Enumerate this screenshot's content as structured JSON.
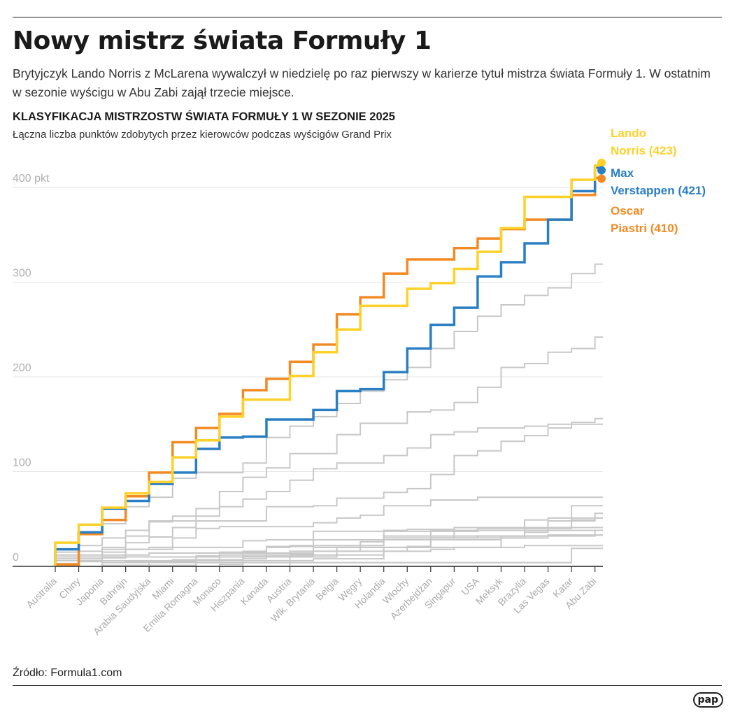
{
  "header": {
    "title": "Nowy mistrz świata Formuły 1",
    "lead": "Brytyjczyk Lando Norris z McLarena wywalczył w niedzielę po raz pierwszy w karierze tytuł mistrza świata Formuły 1. W ostatnim w sezonie wyścigu w Abu Zabi zajął trzecie miejsce."
  },
  "footer": {
    "source": "Źródło: Formula1.com",
    "logo": "pap"
  },
  "chart_data": {
    "type": "line",
    "step": true,
    "title": "KLASYFIKACJA MISTRZOSTW ŚWIATA FORMUŁY 1 W SEZONIE 2025",
    "subtitle": "Łączna liczba punktów zdobytych przez kierowców podczas wyścigów Grand Prix",
    "ylim": [
      0,
      423
    ],
    "yticks": [
      {
        "value": 0,
        "label": "0"
      },
      {
        "value": 100,
        "label": "100"
      },
      {
        "value": 200,
        "label": "200"
      },
      {
        "value": 300,
        "label": "300"
      },
      {
        "value": 400,
        "label": "400 pkt"
      }
    ],
    "grid": true,
    "categories": [
      "Australia",
      "Chiny",
      "Japonia",
      "Bahrajn",
      "Arabia Saudyjska",
      "Miami",
      "Emilia Romagna",
      "Monaco",
      "Hiszpania",
      "Kanada",
      "Austria",
      "Wlk. Brytania",
      "Belgia",
      "Węgry",
      "Holandia",
      "Włochy",
      "Azerbejdżan",
      "Singapur",
      "USA",
      "Meksyk",
      "Brazylia",
      "Las Vegas",
      "Katar",
      "Abu Zabi"
    ],
    "highlighted": [
      {
        "name": "Lando",
        "name2": "Norris (423)",
        "color": "#fdd12a",
        "values": [
          25,
          44,
          62,
          77,
          89,
          115,
          133,
          158,
          176,
          176,
          201,
          226,
          250,
          275,
          275,
          293,
          299,
          314,
          332,
          357,
          390,
          390,
          408,
          423
        ]
      },
      {
        "name": "Max",
        "name2": "Verstappen (421)",
        "color": "#2a7fc4",
        "values": [
          18,
          36,
          61,
          69,
          87,
          99,
          124,
          136,
          137,
          155,
          155,
          165,
          185,
          187,
          205,
          230,
          255,
          273,
          306,
          321,
          341,
          366,
          396,
          421
        ]
      },
      {
        "name": "Oscar",
        "name2": "Piastri (410)",
        "color": "#f28a24",
        "values": [
          2,
          34,
          49,
          74,
          99,
          131,
          146,
          161,
          186,
          198,
          216,
          234,
          266,
          284,
          309,
          324,
          324,
          336,
          346,
          356,
          366,
          366,
          392,
          410
        ]
      }
    ],
    "others_color": "#c8c8c8",
    "others": [
      [
        15,
        35,
        45,
        63,
        73,
        93,
        99,
        99,
        109,
        136,
        148,
        158,
        172,
        185,
        197,
        210,
        230,
        248,
        264,
        276,
        286,
        294,
        309,
        319
      ],
      [
        8,
        8,
        20,
        32,
        47,
        53,
        61,
        79,
        94,
        104,
        119,
        119,
        139,
        151,
        151,
        163,
        165,
        173,
        189,
        210,
        214,
        226,
        230,
        242
      ],
      [
        10,
        10,
        15,
        25,
        31,
        41,
        53,
        63,
        71,
        79,
        91,
        103,
        109,
        109,
        117,
        125,
        139,
        142,
        146,
        146,
        148,
        150,
        152,
        156
      ],
      [
        12,
        22,
        30,
        38,
        48,
        48,
        48,
        48,
        48,
        63,
        63,
        64,
        72,
        72,
        78,
        82,
        97,
        117,
        122,
        132,
        138,
        146,
        150,
        150
      ],
      [
        10,
        16,
        18,
        18,
        20,
        30,
        40,
        42,
        42,
        42,
        42,
        46,
        51,
        54,
        64,
        64,
        70,
        70,
        73,
        73,
        73,
        73,
        73,
        73
      ],
      [
        0,
        0,
        1,
        1,
        5,
        7,
        11,
        12,
        13,
        13,
        13,
        16,
        16,
        16,
        16,
        21,
        38,
        38,
        38,
        38,
        38,
        48,
        64,
        64
      ],
      [
        0,
        0,
        0,
        0,
        0,
        0,
        0,
        2,
        8,
        14,
        16,
        16,
        20,
        26,
        30,
        30,
        30,
        37,
        40,
        40,
        40,
        40,
        48,
        56
      ],
      [
        0,
        0,
        4,
        4,
        4,
        4,
        7,
        15,
        15,
        21,
        21,
        22,
        22,
        22,
        38,
        39,
        39,
        41,
        41,
        41,
        49,
        51,
        51,
        51
      ],
      [
        6,
        6,
        6,
        6,
        6,
        6,
        6,
        6,
        16,
        20,
        22,
        37,
        37,
        37,
        37,
        37,
        37,
        37,
        41,
        41,
        41,
        41,
        49,
        51
      ],
      [
        0,
        0,
        4,
        5,
        5,
        5,
        6,
        6,
        6,
        6,
        6,
        8,
        8,
        8,
        16,
        16,
        18,
        20,
        20,
        32,
        40,
        41,
        41,
        41
      ],
      [
        0,
        10,
        10,
        18,
        18,
        20,
        20,
        20,
        27,
        28,
        28,
        28,
        28,
        28,
        28,
        28,
        30,
        30,
        32,
        32,
        32,
        32,
        32,
        38
      ],
      [
        0,
        0,
        0,
        0,
        0,
        0,
        4,
        4,
        4,
        4,
        12,
        12,
        16,
        20,
        20,
        20,
        30,
        30,
        30,
        30,
        36,
        38,
        38,
        38
      ],
      [
        10,
        12,
        12,
        12,
        14,
        14,
        14,
        14,
        14,
        14,
        14,
        20,
        20,
        26,
        32,
        32,
        32,
        32,
        32,
        32,
        32,
        33,
        33,
        33
      ],
      [
        3,
        5,
        9,
        10,
        10,
        10,
        10,
        10,
        10,
        10,
        10,
        10,
        12,
        12,
        20,
        20,
        28,
        28,
        28,
        30,
        30,
        33,
        33,
        33
      ],
      [
        0,
        0,
        0,
        1,
        1,
        1,
        7,
        7,
        11,
        11,
        11,
        20,
        20,
        20,
        20,
        20,
        20,
        20,
        20,
        20,
        22,
        22,
        22,
        22
      ],
      [
        0,
        0,
        0,
        0,
        0,
        0,
        0,
        0,
        0,
        0,
        4,
        4,
        4,
        4,
        4,
        4,
        4,
        4,
        4,
        4,
        4,
        4,
        19,
        19
      ],
      [
        0,
        0,
        0,
        0,
        0,
        0,
        0,
        0,
        0,
        0,
        0,
        0,
        0,
        0,
        0,
        0,
        0,
        0,
        0,
        0,
        0,
        0,
        0,
        0
      ]
    ]
  }
}
